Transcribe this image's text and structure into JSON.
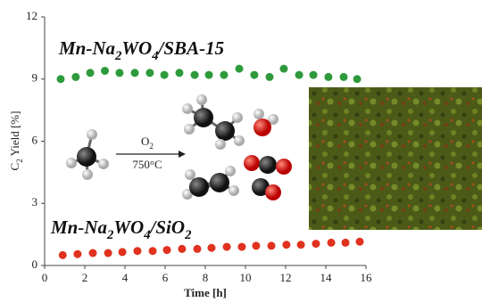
{
  "chart_data": {
    "type": "scatter",
    "x_label": "Time [h]",
    "y_label": "C2 Yield [%]",
    "xlim": [
      0,
      16
    ],
    "xticks": [
      0,
      2,
      4,
      6,
      8,
      10,
      12,
      14,
      16
    ],
    "ylim": [
      0,
      12
    ],
    "yticks": [
      0,
      3,
      6,
      9,
      12
    ],
    "series": [
      {
        "name": "Mn-Na2WO4/SBA-15",
        "color": "#2e9a3c",
        "x": [
          0.8,
          1.55,
          2.27,
          3.0,
          3.73,
          4.49,
          5.24,
          5.96,
          6.71,
          7.47,
          8.18,
          8.93,
          9.69,
          10.44,
          11.2,
          11.91,
          12.67,
          13.38,
          14.13,
          14.89,
          15.56
        ],
        "values": [
          9.0,
          9.1,
          9.3,
          9.4,
          9.3,
          9.3,
          9.3,
          9.2,
          9.3,
          9.2,
          9.2,
          9.2,
          9.5,
          9.2,
          9.1,
          9.5,
          9.2,
          9.2,
          9.1,
          9.1,
          9.0
        ]
      },
      {
        "name": "Mn-Na2WO4/SiO2",
        "color": "#e0321e",
        "x": [
          0.9,
          1.64,
          2.4,
          3.16,
          3.87,
          4.62,
          5.38,
          6.09,
          6.84,
          7.6,
          8.31,
          9.07,
          9.82,
          10.53,
          11.29,
          12.04,
          12.76,
          13.51,
          14.27,
          14.98,
          15.69
        ],
        "values": [
          0.5,
          0.55,
          0.6,
          0.6,
          0.65,
          0.7,
          0.7,
          0.75,
          0.8,
          0.8,
          0.85,
          0.9,
          0.9,
          0.95,
          0.95,
          1.0,
          1.0,
          1.05,
          1.1,
          1.1,
          1.15
        ]
      }
    ],
    "annotations": [
      "O2",
      "750°C"
    ]
  }
}
